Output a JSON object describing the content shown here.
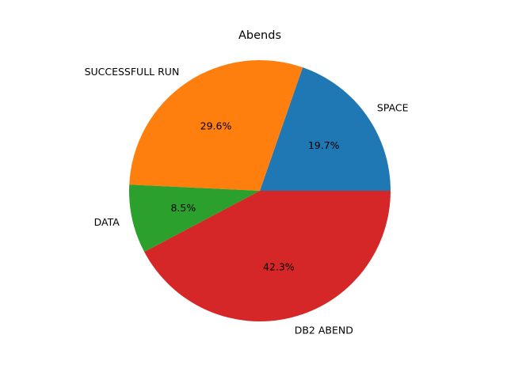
{
  "chart_data": {
    "type": "pie",
    "title": "Abends",
    "slices": [
      {
        "label": "SPACE",
        "value": 19.7,
        "pct_label": "19.7%",
        "color": "#1f77b4"
      },
      {
        "label": "SUCCESSFULL RUN",
        "value": 29.6,
        "pct_label": "29.6%",
        "color": "#ff7f0e"
      },
      {
        "label": "DATA",
        "value": 8.5,
        "pct_label": "8.5%",
        "color": "#2ca02c"
      },
      {
        "label": "DB2 ABEND",
        "value": 42.3,
        "pct_label": "42.3%",
        "color": "#d62728"
      }
    ],
    "start_angle_deg": 0,
    "direction": "counterclockwise"
  }
}
